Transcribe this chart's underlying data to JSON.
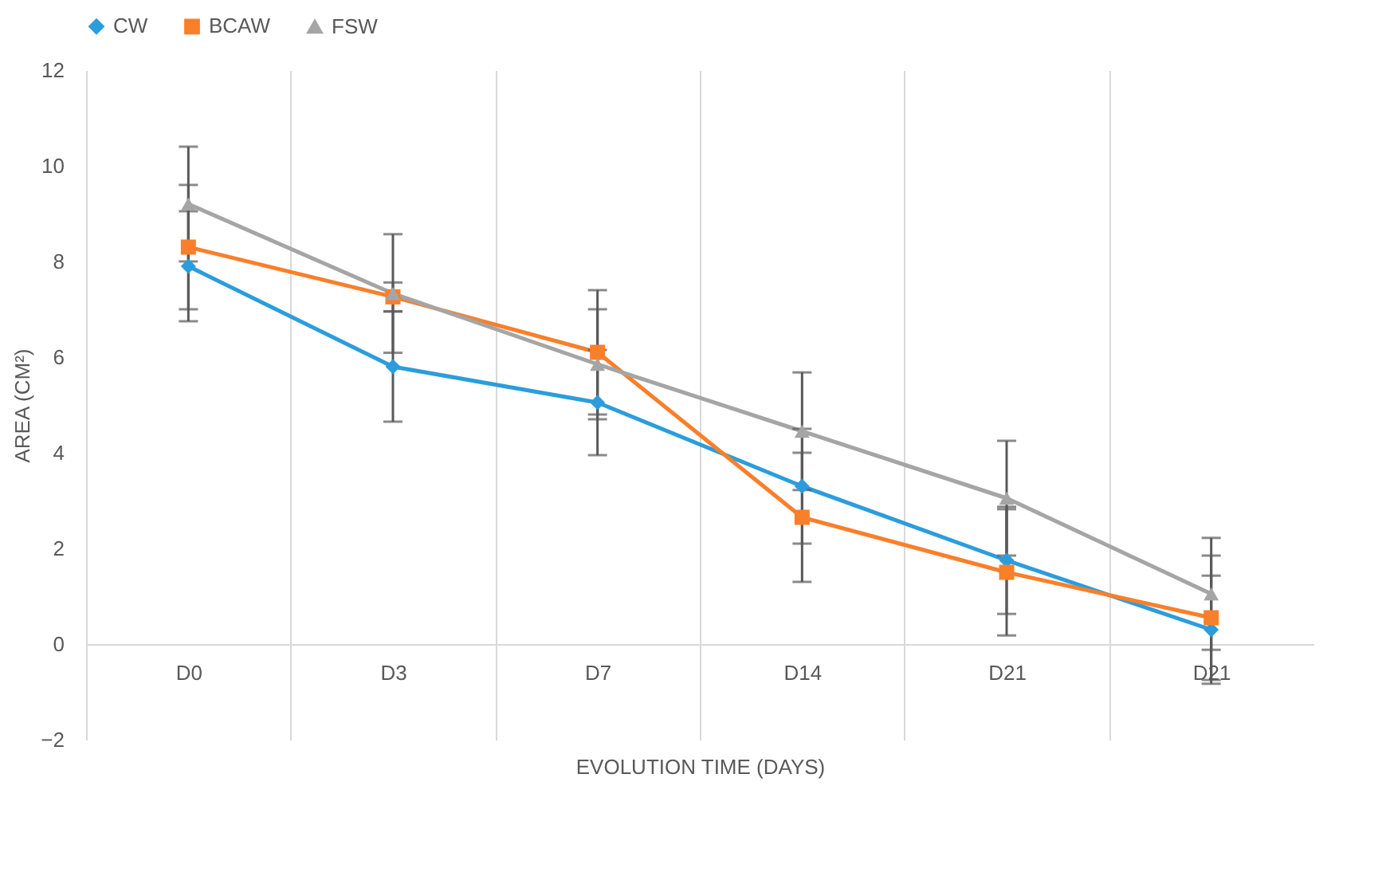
{
  "chart_data": {
    "type": "line",
    "xlabel": "EVOLUTION TIME (DAYS)",
    "ylabel": "AREA (CM²)",
    "categories": [
      "D0",
      "D3",
      "D7",
      "D14",
      "D21",
      "D21"
    ],
    "ylim": [
      -2,
      12
    ],
    "yticks": [
      -2,
      0,
      2,
      4,
      6,
      8,
      10,
      12
    ],
    "grid": "x",
    "legend": "top",
    "series": [
      {
        "name": "CW",
        "color": "#2b9ddc",
        "marker": "diamond",
        "values": [
          7.9,
          5.8,
          5.05,
          3.3,
          1.75,
          0.3
        ],
        "errors": [
          1.15,
          1.15,
          1.1,
          1.2,
          1.12,
          1.13
        ]
      },
      {
        "name": "BCAW",
        "color": "#f97f2a",
        "marker": "square",
        "values": [
          8.3,
          7.26,
          6.1,
          2.65,
          1.5,
          0.55
        ],
        "errors": [
          1.3,
          0.3,
          1.3,
          1.35,
          1.32,
          1.3
        ]
      },
      {
        "name": "FSW",
        "color": "#a5a5a5",
        "marker": "triangle",
        "values": [
          9.2,
          7.33,
          5.85,
          4.45,
          3.05,
          1.05
        ],
        "errors": [
          1.2,
          1.24,
          1.15,
          1.23,
          1.2,
          1.17
        ]
      }
    ]
  }
}
